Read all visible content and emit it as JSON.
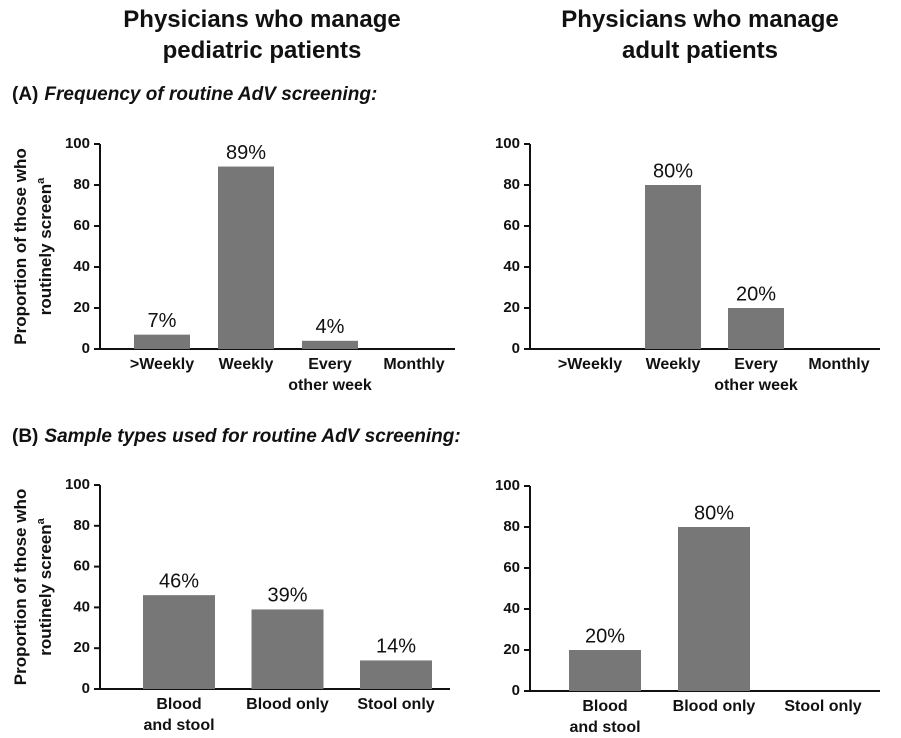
{
  "columns": [
    "Physicians who manage pediatric patients",
    "Physicians who manage adult patients"
  ],
  "sections": [
    {
      "label": "(A)",
      "title": "Frequency of routine AdV screening:"
    },
    {
      "label": "(B)",
      "title": "Sample types used for routine AdV screening:"
    }
  ],
  "chart_data": [
    {
      "type": "bar",
      "ylabel": [
        "Proportion of those who",
        "routinely screen"
      ],
      "ylabel_superscript": "a",
      "categories": [
        [
          ">Weekly"
        ],
        [
          "Weekly"
        ],
        [
          "Every",
          "other week"
        ],
        [
          "Monthly"
        ]
      ],
      "values": [
        7,
        89,
        4,
        0
      ],
      "value_labels": [
        "7%",
        "89%",
        "4%",
        null
      ],
      "color": "#777777",
      "ylim": [
        0,
        100
      ],
      "yticks": [
        0,
        20,
        40,
        60,
        80,
        100
      ]
    },
    {
      "type": "bar",
      "categories": [
        [
          ">Weekly"
        ],
        [
          "Weekly"
        ],
        [
          "Every",
          "other week"
        ],
        [
          "Monthly"
        ]
      ],
      "values": [
        0,
        80,
        20,
        0
      ],
      "value_labels": [
        null,
        "80%",
        "20%",
        null
      ],
      "color": "#777777",
      "ylim": [
        0,
        100
      ],
      "yticks": [
        0,
        20,
        40,
        60,
        80,
        100
      ]
    },
    {
      "type": "bar",
      "ylabel": [
        "Proportion of those who",
        "routinely screen"
      ],
      "ylabel_superscript": "a",
      "categories": [
        [
          "Blood",
          "and stool"
        ],
        [
          "Blood only"
        ],
        [
          "Stool only"
        ]
      ],
      "values": [
        46,
        39,
        14
      ],
      "value_labels": [
        "46%",
        "39%",
        "14%"
      ],
      "color": "#777777",
      "ylim": [
        0,
        100
      ],
      "yticks": [
        0,
        20,
        40,
        60,
        80,
        100
      ]
    },
    {
      "type": "bar",
      "categories": [
        [
          "Blood",
          "and stool"
        ],
        [
          "Blood only"
        ],
        [
          "Stool only"
        ]
      ],
      "values": [
        20,
        80,
        0
      ],
      "value_labels": [
        "20%",
        "80%",
        null
      ],
      "color": "#777777",
      "ylim": [
        0,
        100
      ],
      "yticks": [
        0,
        20,
        40,
        60,
        80,
        100
      ]
    }
  ]
}
